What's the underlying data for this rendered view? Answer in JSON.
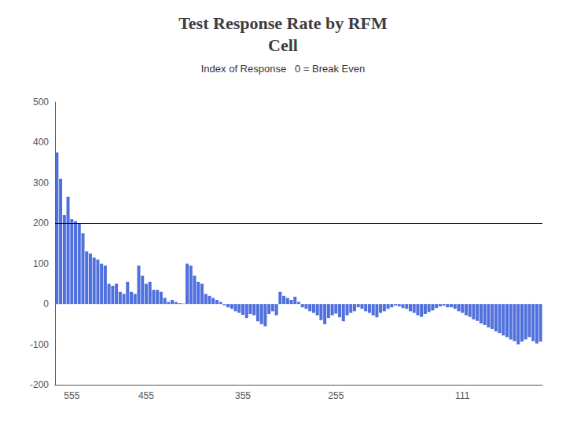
{
  "chart_data": {
    "type": "bar",
    "title": "Test Response Rate by RFM\nCell",
    "subtitle": "Index of Response   0 = Break Even",
    "categories": [
      null,
      null,
      null,
      null,
      "555",
      null,
      null,
      null,
      null,
      null,
      null,
      null,
      null,
      null,
      null,
      null,
      null,
      null,
      null,
      null,
      null,
      null,
      null,
      null,
      "455",
      null,
      null,
      null,
      null,
      null,
      null,
      null,
      null,
      null,
      null,
      null,
      null,
      null,
      null,
      null,
      null,
      null,
      null,
      null,
      null,
      null,
      null,
      null,
      null,
      null,
      "355",
      null,
      null,
      null,
      null,
      null,
      null,
      null,
      null,
      null,
      null,
      null,
      null,
      null,
      null,
      null,
      null,
      null,
      null,
      null,
      null,
      null,
      null,
      null,
      null,
      "255",
      null,
      null,
      null,
      null,
      null,
      null,
      null,
      null,
      null,
      null,
      null,
      null,
      null,
      null,
      null,
      null,
      null,
      null,
      null,
      null,
      null,
      null,
      null,
      null,
      null,
      null,
      null,
      null,
      null,
      null,
      null,
      null,
      null,
      "111",
      null,
      null,
      null,
      null,
      null,
      null,
      null,
      null,
      null,
      null,
      null,
      null,
      null,
      null,
      null,
      null,
      null,
      null,
      null,
      null,
      null
    ],
    "values": [
      375,
      310,
      220,
      265,
      210,
      205,
      200,
      175,
      130,
      125,
      115,
      110,
      100,
      95,
      50,
      45,
      50,
      30,
      25,
      55,
      30,
      25,
      95,
      70,
      50,
      55,
      35,
      35,
      30,
      15,
      5,
      10,
      5,
      2,
      1,
      100,
      95,
      70,
      55,
      50,
      25,
      20,
      15,
      10,
      5,
      -3,
      -8,
      -12,
      -18,
      -22,
      -27,
      -35,
      -25,
      -28,
      -43,
      -50,
      -55,
      -25,
      -18,
      -28,
      30,
      20,
      15,
      10,
      18,
      5,
      -8,
      -12,
      -18,
      -22,
      -28,
      -40,
      -50,
      -35,
      -28,
      -24,
      -33,
      -43,
      -28,
      -22,
      -18,
      -8,
      -12,
      -18,
      -22,
      -28,
      -33,
      -22,
      -18,
      -12,
      -8,
      -4,
      -6,
      -10,
      -12,
      -18,
      -22,
      -28,
      -32,
      -25,
      -20,
      -16,
      -10,
      -6,
      -4,
      -8,
      -8,
      -12,
      -18,
      -22,
      -28,
      -32,
      -38,
      -42,
      -48,
      -52,
      -58,
      -62,
      -68,
      -72,
      -78,
      -82,
      -88,
      -92,
      -100,
      -93,
      -88,
      -82,
      -92,
      -98,
      -93
    ],
    "reference_line": 200,
    "ylim": [
      -200,
      500
    ],
    "yticks": [
      -200,
      -100,
      0,
      100,
      200,
      300,
      400,
      500
    ],
    "grid": false
  }
}
